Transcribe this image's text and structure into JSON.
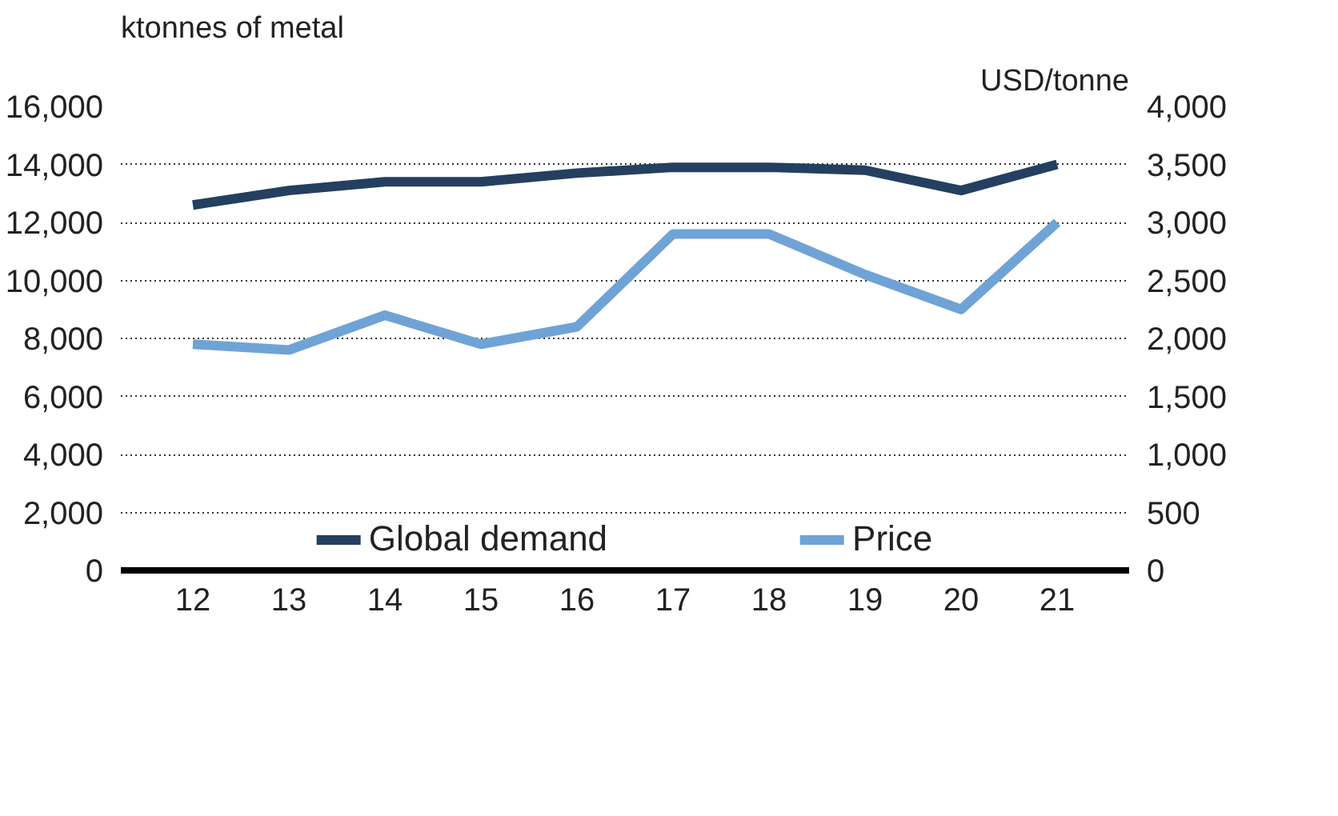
{
  "chart_data": {
    "type": "line",
    "ylabel": "ktonnes of metal",
    "y2label": "USD/tonne",
    "categories": [
      "12",
      "13",
      "14",
      "15",
      "16",
      "17",
      "18",
      "19",
      "20",
      "21"
    ],
    "series": [
      {
        "name": "Global demand",
        "color": "#243f60",
        "values": [
          12600,
          13100,
          13400,
          13400,
          13700,
          13900,
          13900,
          13800,
          13100,
          14000
        ]
      },
      {
        "name": "Price",
        "color": "#6fa3d6",
        "axis": "y2",
        "values": [
          1950,
          1900,
          2200,
          1950,
          2100,
          2900,
          2900,
          2550,
          2250,
          3000
        ]
      }
    ],
    "ylim": [
      0,
      16000
    ],
    "yticks": [
      {
        "value": 0,
        "label": "0"
      },
      {
        "value": 2000,
        "label": "2,000"
      },
      {
        "value": 4000,
        "label": "4,000"
      },
      {
        "value": 6000,
        "label": "6,000"
      },
      {
        "value": 8000,
        "label": "8,000"
      },
      {
        "value": 10000,
        "label": "10,000"
      },
      {
        "value": 12000,
        "label": "12,000"
      },
      {
        "value": 14000,
        "label": "14,000"
      },
      {
        "value": 16000,
        "label": "16,000"
      }
    ],
    "y2lim": [
      0,
      4000
    ],
    "y2ticks": [
      0,
      500,
      {
        "value": 1000,
        "label": "1,000"
      },
      {
        "value": 1500,
        "label": "1,500"
      },
      {
        "value": 2000,
        "label": "2,000"
      },
      {
        "value": 2500,
        "label": "2,500"
      },
      {
        "value": 3000,
        "label": "3,000"
      },
      {
        "value": 3500,
        "label": "3,500"
      },
      {
        "value": 4000,
        "label": "4,000"
      }
    ],
    "grid": "y",
    "legend": "bottom",
    "line_style": "solid"
  }
}
